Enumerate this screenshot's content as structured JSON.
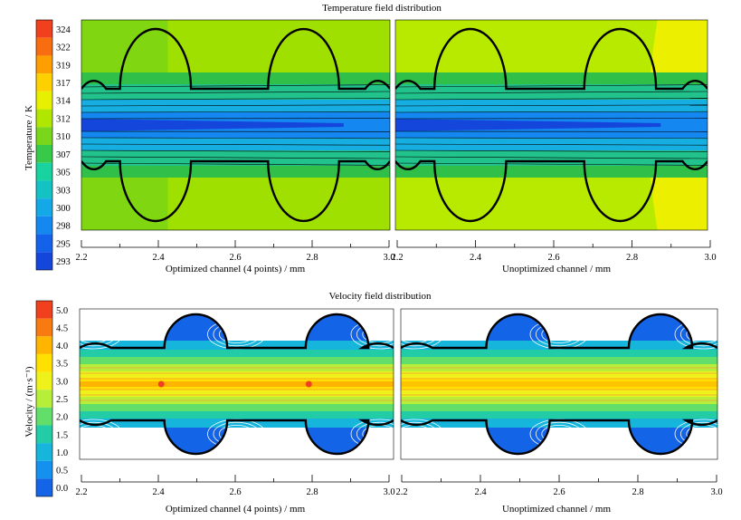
{
  "chart_data": [
    {
      "type": "heatmap",
      "title": "Temperature field distribution",
      "ylabel": "Temperature  / K",
      "colorbar": {
        "labels": [
          "324",
          "322",
          "319",
          "317",
          "314",
          "312",
          "310",
          "307",
          "305",
          "303",
          "300",
          "298",
          "295",
          "293"
        ],
        "colors": [
          "#f0401e",
          "#f86d10",
          "#ff9e00",
          "#ffd000",
          "#e6f000",
          "#b0e600",
          "#7ad61a",
          "#38c84a",
          "#18d2a0",
          "#14c2c4",
          "#14a8e6",
          "#1487f0",
          "#1462ea",
          "#1446dc"
        ]
      },
      "panels": [
        {
          "xlabel": "Optimized channel (4 points) / mm",
          "x_ticks": [
            "2.2",
            "2.4",
            "2.6",
            "2.8",
            "3.0"
          ]
        },
        {
          "xlabel": "Unoptimized channel / mm",
          "x_ticks": [
            "2.2",
            "2.4",
            "2.6",
            "2.8",
            "3.0"
          ]
        }
      ]
    },
    {
      "type": "heatmap",
      "title": "Velocity field distribution",
      "ylabel": "Velocity / (m·s⁻¹)",
      "colorbar": {
        "labels": [
          "5.0",
          "4.5",
          "4.0",
          "3.5",
          "3.0",
          "2.5",
          "2.0",
          "1.5",
          "1.0",
          "0.5",
          "0.0"
        ],
        "colors": [
          "#f0401e",
          "#f87a10",
          "#ffb400",
          "#ffe000",
          "#eef21a",
          "#b6ee3a",
          "#62de6a",
          "#22cca6",
          "#16b6dc",
          "#1490ee",
          "#1464e8"
        ]
      },
      "panels": [
        {
          "xlabel": "Optimized channel (4 points) / mm",
          "x_ticks": [
            "2.2",
            "2.4",
            "2.6",
            "2.8",
            "3.0"
          ]
        },
        {
          "xlabel": "Unoptimized channel / mm",
          "x_ticks": [
            "2.2",
            "2.4",
            "2.6",
            "2.8",
            "3.0"
          ]
        }
      ]
    }
  ]
}
